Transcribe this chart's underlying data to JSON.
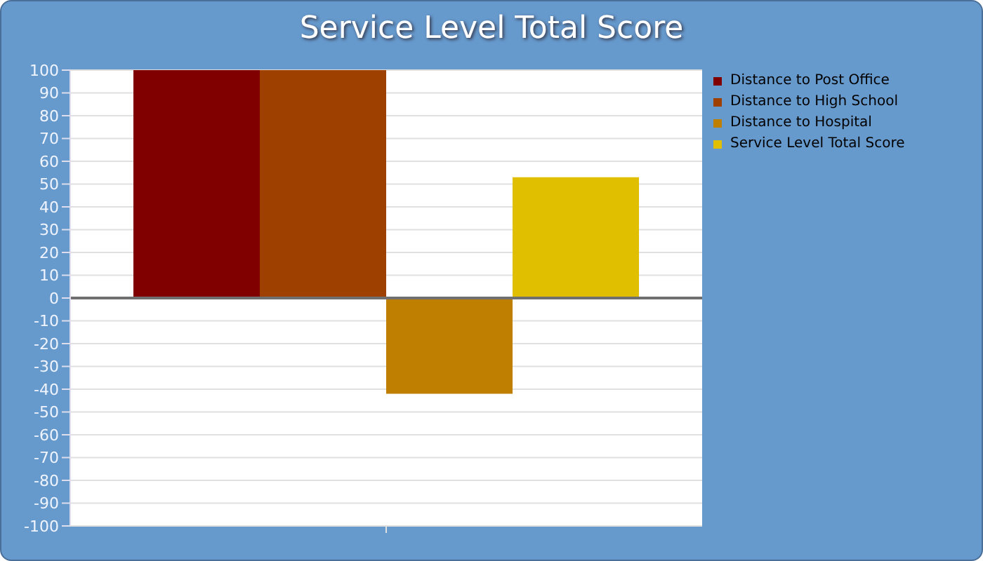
{
  "chart_data": {
    "type": "bar",
    "title": "Service Level Total Score",
    "categories": [
      null
    ],
    "series": [
      {
        "name": "Distance to Post Office",
        "color": "#800000",
        "values": [
          100
        ]
      },
      {
        "name": "Distance to High School",
        "color": "#9e4100",
        "values": [
          100
        ]
      },
      {
        "name": "Distance to Hospital",
        "color": "#bf7f00",
        "values": [
          -42
        ]
      },
      {
        "name": "Service Level Total Score",
        "color": "#e0bf00",
        "values": [
          53
        ]
      }
    ],
    "ylim": [
      -100,
      100
    ],
    "yticks": [
      -100,
      -90,
      -80,
      -70,
      -60,
      -50,
      -40,
      -30,
      -20,
      -10,
      0,
      10,
      20,
      30,
      40,
      50,
      60,
      70,
      80,
      90,
      100
    ],
    "grid": "y",
    "legend": "top right",
    "ref_lines": [
      {
        "axis": "y",
        "value": 0,
        "color": "#707070"
      }
    ]
  }
}
